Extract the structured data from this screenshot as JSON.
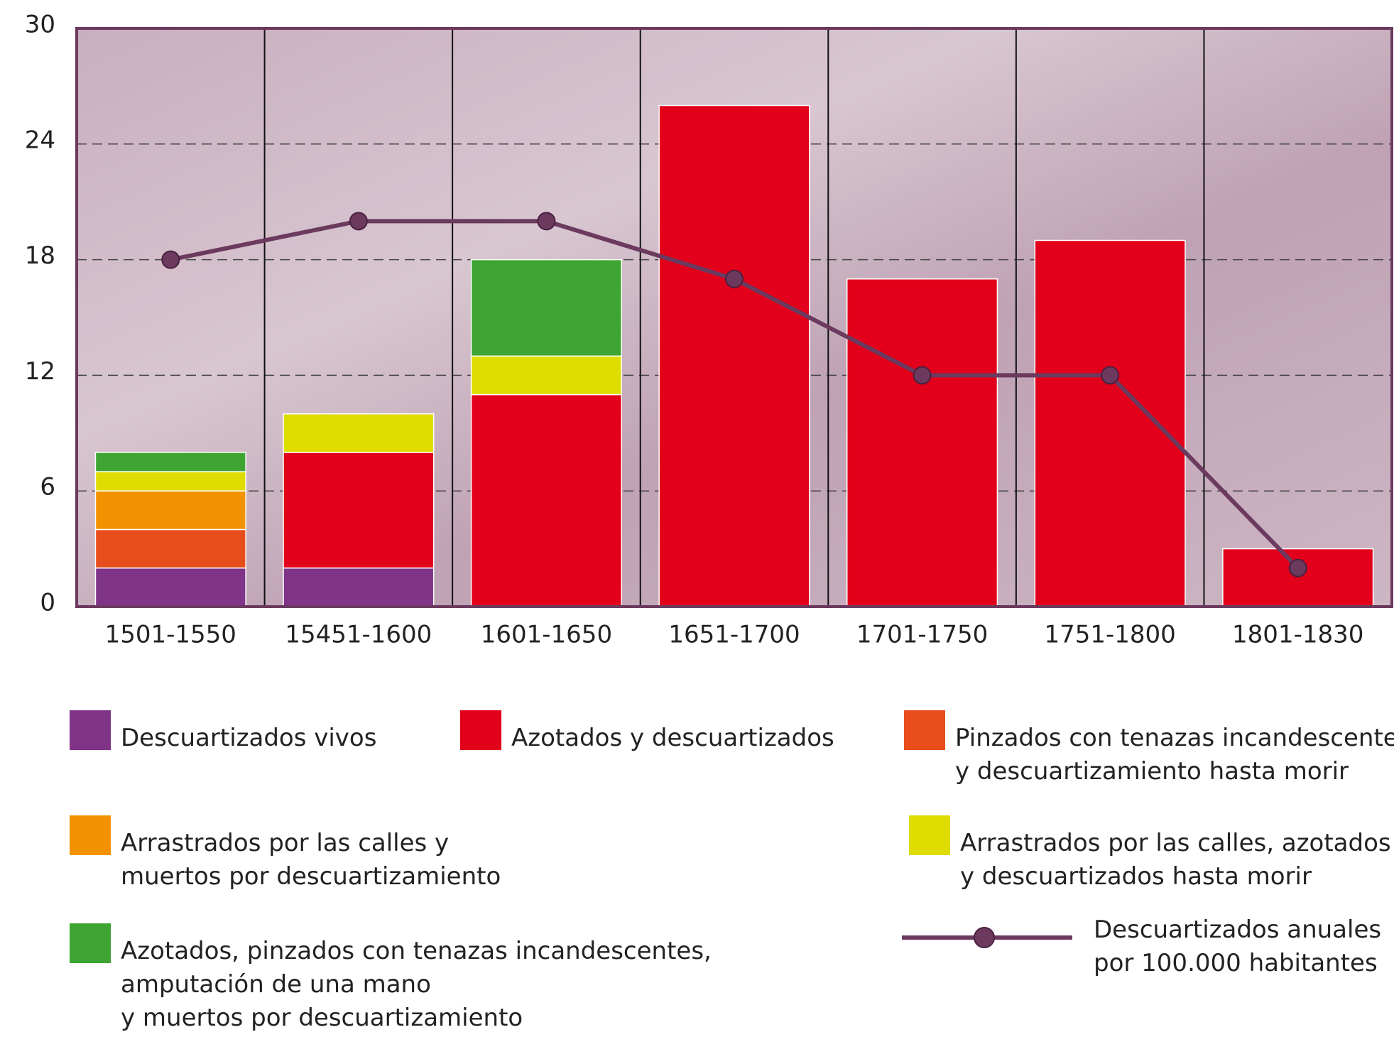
{
  "chart_data": {
    "type": "bar",
    "stacked": true,
    "categories": [
      "1501-1550",
      "15451-1600",
      "1601-1650",
      "1651-1700",
      "1701-1750",
      "1751-1800",
      "1801-1830"
    ],
    "ylim": [
      0,
      30
    ],
    "yticks": [
      0,
      6,
      12,
      18,
      24,
      30
    ],
    "grid": true,
    "series": [
      {
        "name": "Descuartizados vivos",
        "color": "#7f3488",
        "values": [
          2,
          2,
          0,
          0,
          0,
          0,
          0
        ]
      },
      {
        "name": "Azotados y descuartizados",
        "color": "#e2001a",
        "values": [
          0,
          6,
          11,
          26,
          17,
          19,
          3
        ]
      },
      {
        "name": "Pinzados con tenazas incandescentes\ny descuartizamiento hasta morir",
        "color": "#e84e1b",
        "values": [
          2,
          0,
          0,
          0,
          0,
          0,
          0
        ]
      },
      {
        "name": "Arrastrados por las calles y\nmuertos por descuartizamiento",
        "color": "#f39200",
        "values": [
          2,
          0,
          0,
          0,
          0,
          0,
          0
        ]
      },
      {
        "name": "Arrastrados por las calles, azotados\ny descuartizados hasta morir",
        "color": "#dedc00",
        "values": [
          1,
          2,
          2,
          0,
          0,
          0,
          0
        ]
      },
      {
        "name": "Azotados, pinzados con tenazas incandescentes,\namputación de una mano\ny muertos por descuartizamiento",
        "color": "#3ea532",
        "values": [
          1,
          0,
          5,
          0,
          0,
          0,
          0
        ]
      },
      {
        "name": "Descuartizados anuales\npor 100.000 habitantes",
        "type": "line",
        "color": "#6b3a5e",
        "values": [
          18,
          20,
          20,
          17,
          12,
          12,
          2
        ]
      }
    ]
  }
}
